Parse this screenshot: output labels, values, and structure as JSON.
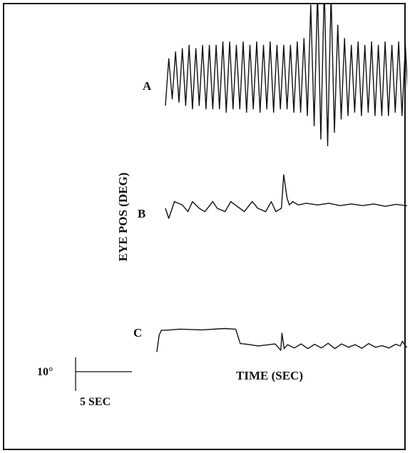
{
  "chart_data": {
    "type": "line",
    "title": "",
    "ylabel": "EYE POS (DEG)",
    "xlabel": "TIME (SEC)",
    "scale_bar": {
      "vertical_label": "10°",
      "horizontal_label": "5 SEC"
    },
    "x_unit": "sec",
    "y_unit": "deg",
    "series": [
      {
        "name": "A",
        "x": [
          0.0,
          0.3,
          0.6,
          0.9,
          1.2,
          1.5,
          1.8,
          2.1,
          2.4,
          2.7,
          3.0,
          3.3,
          3.6,
          3.9,
          4.2,
          4.5,
          4.8,
          5.1,
          5.4,
          5.7,
          6.0,
          6.3,
          6.6,
          6.9,
          7.2,
          7.5,
          7.8,
          8.1,
          8.4,
          8.7,
          9.0,
          9.3,
          9.6,
          9.9,
          10.2,
          10.5,
          10.8,
          11.1,
          11.4,
          11.7,
          12.0,
          12.3,
          12.6,
          12.9,
          13.2,
          13.5,
          13.8,
          14.1,
          14.4,
          14.7,
          15.0,
          15.3,
          15.6,
          15.9,
          16.2,
          16.5,
          16.8,
          17.1,
          17.4,
          17.7,
          18.0,
          18.3,
          18.6,
          18.9,
          19.2,
          19.5,
          19.8,
          20.1,
          20.4,
          20.7,
          21.0,
          21.3,
          21.6,
          21.9,
          22.2,
          22.5,
          22.8,
          23.1,
          23.4,
          23.7,
          24.0,
          24.3,
          24.6,
          24.9,
          25.2,
          25.5,
          25.8,
          26.1,
          26.4,
          26.7,
          27.0,
          27.3,
          27.6,
          27.9
        ],
        "y": [
          0,
          14,
          2,
          16,
          1,
          17,
          0,
          18,
          -1,
          17,
          0,
          18,
          -1,
          18,
          -1,
          18,
          -1,
          19,
          -2,
          19,
          -1,
          18,
          -1,
          19,
          -2,
          18,
          -1,
          19,
          -2,
          18,
          -1,
          19,
          -2,
          18,
          -1,
          18,
          -1,
          18,
          -2,
          19,
          -2,
          20,
          -3,
          30,
          -6,
          34,
          -10,
          36,
          -12,
          33,
          -8,
          24,
          -4,
          20,
          -3,
          18,
          -2,
          19,
          -3,
          18,
          -2,
          19,
          -3,
          18,
          -3,
          19,
          -3,
          18,
          -2,
          19,
          -3,
          18,
          -2,
          18,
          -2,
          19,
          -3,
          18,
          -2,
          18,
          -3,
          19,
          -3,
          18,
          -2,
          18,
          -2,
          17,
          -2,
          18,
          -1,
          17,
          -1,
          12
        ]
      },
      {
        "name": "B",
        "x": [
          0.0,
          0.3,
          0.8,
          1.5,
          2.0,
          2.4,
          3.0,
          3.5,
          4.2,
          4.6,
          5.3,
          5.8,
          6.6,
          7.0,
          7.7,
          8.2,
          8.9,
          9.4,
          9.8,
          10.3,
          10.5,
          10.8,
          11.0,
          11.3,
          11.8,
          12.5,
          13.5,
          14.5,
          15.5,
          16.5,
          17.5,
          18.5,
          19.5,
          20.5,
          21.5,
          22.5,
          23.5,
          24.5,
          25.5,
          26.5,
          27.5
        ],
        "y": [
          0,
          -3,
          2,
          1,
          -1,
          2,
          0,
          -1,
          2,
          0,
          -1,
          2,
          0,
          -1,
          2,
          0,
          -1,
          2,
          -1,
          0,
          10,
          3,
          1,
          2,
          1,
          1.5,
          1,
          1.5,
          0.8,
          1.3,
          0.8,
          1.3,
          0.6,
          1.2,
          0.7,
          1.2,
          0.5,
          1.1,
          0.4,
          1.0,
          0.9
        ]
      },
      {
        "name": "C",
        "x": [
          0.0,
          0.2,
          0.4,
          0.8,
          2.0,
          4.0,
          6.0,
          7.0,
          7.4,
          8.0,
          9.0,
          10.5,
          11.0,
          11.1,
          11.3,
          11.6,
          12.2,
          12.8,
          13.4,
          14.0,
          14.6,
          15.2,
          15.8,
          16.4,
          17.0,
          17.6,
          18.2,
          18.8,
          19.4,
          20.0,
          20.6,
          21.2,
          21.6,
          21.8,
          22.1,
          22.5
        ],
        "y": [
          -2,
          3,
          4.5,
          4.5,
          4.8,
          4.6,
          5.0,
          4.8,
          0.5,
          0.3,
          -0.2,
          0.4,
          -1.5,
          3.6,
          -1.0,
          0.2,
          -0.8,
          0.4,
          -1.0,
          0.3,
          -0.8,
          0.6,
          -1.0,
          0.4,
          -0.6,
          0.2,
          -0.9,
          0.5,
          -0.6,
          -0.1,
          -0.8,
          0.3,
          -0.2,
          1.2,
          -0.4,
          -1.0
        ]
      }
    ]
  }
}
